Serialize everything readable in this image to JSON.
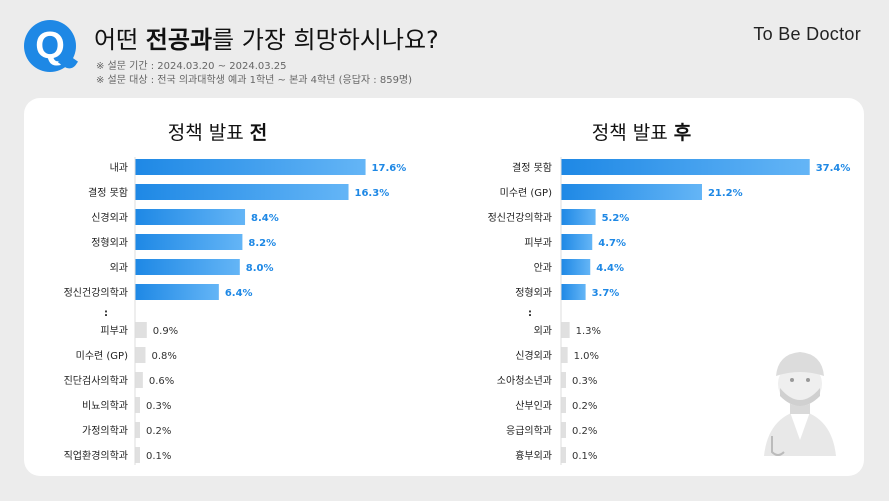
{
  "header": {
    "title_pre": "어떤 ",
    "title_bold": "전공과",
    "title_post": "를 가장 희망하시나요?",
    "period": "※ 설문 기간 : 2024.03.20 ~ 2024.03.25",
    "target": "※ 설문 대상 : 전국 의과대학생 예과 1학년 ~ 본과 4학년 (응답자 : 859명)",
    "brand": "To Be Doctor",
    "badge": "Q"
  },
  "colors": {
    "accent": "#1e88e5",
    "bar_gradient_start": "#1e88e5",
    "bar_gradient_end": "#64b5f6",
    "minor_bar": "#e0e0e0",
    "value_text": "#1e88e5"
  },
  "chart_data": [
    {
      "type": "bar",
      "orientation": "horizontal",
      "title_pre": "정책 발표 ",
      "title_bold": "전",
      "categories": [
        "내과",
        "결정 못함",
        "신경외과",
        "정형외과",
        "외과",
        "정신건강의학과",
        "피부과",
        "미수련 (GP)",
        "진단검사의학과",
        "비뇨의학과",
        "가정의학과",
        "직업환경의학과"
      ],
      "values": [
        17.6,
        16.3,
        8.4,
        8.2,
        8.0,
        6.4,
        0.9,
        0.8,
        0.6,
        0.3,
        0.2,
        0.1
      ],
      "value_labels": [
        "17.6%",
        "16.3%",
        "8.4%",
        "8.2%",
        "8.0%",
        "6.4%",
        "0.9%",
        "0.8%",
        "0.6%",
        "0.3%",
        "0.2%",
        "0.1%"
      ],
      "highlighted_count": 6,
      "gap_marker": ":",
      "unit": "%"
    },
    {
      "type": "bar",
      "orientation": "horizontal",
      "title_pre": "정책 발표 ",
      "title_bold": "후",
      "categories": [
        "결정 못함",
        "미수련 (GP)",
        "정신건강의학과",
        "피부과",
        "안과",
        "정형외과",
        "외과",
        "신경외과",
        "소아청소년과",
        "산부인과",
        "응급의학과",
        "흉부외과"
      ],
      "values": [
        37.4,
        21.2,
        5.2,
        4.7,
        4.4,
        3.7,
        1.3,
        1.0,
        0.3,
        0.2,
        0.2,
        0.1
      ],
      "value_labels": [
        "37.4%",
        "21.2%",
        "5.2%",
        "4.7%",
        "4.4%",
        "3.7%",
        "1.3%",
        "1.0%",
        "0.3%",
        "0.2%",
        "0.2%",
        "0.1%"
      ],
      "highlighted_count": 6,
      "gap_marker": ":",
      "unit": "%"
    }
  ]
}
